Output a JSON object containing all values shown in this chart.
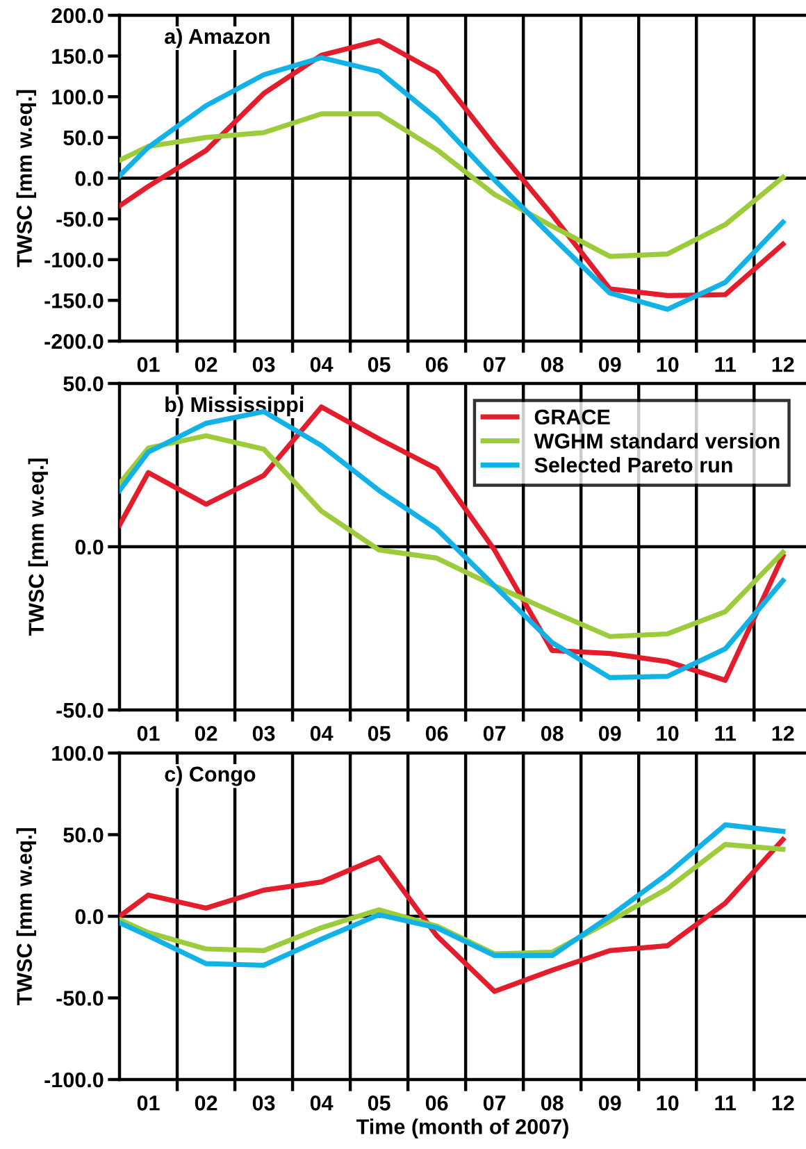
{
  "chart_data": [
    {
      "type": "line",
      "title": "a) Amazon",
      "ylabel": "TWSC [mm w.eq.]",
      "xlim": [
        0.5,
        12.4
      ],
      "ylim": [
        -200,
        200
      ],
      "xticks": [
        {
          "value": 1,
          "label": "01"
        },
        {
          "value": 1.5,
          "label": null
        },
        {
          "value": 2,
          "label": "02"
        },
        {
          "value": 2.5,
          "label": null
        },
        {
          "value": 3,
          "label": "03"
        },
        {
          "value": 3.5,
          "label": null
        },
        {
          "value": 4,
          "label": "04"
        },
        {
          "value": 4.5,
          "label": null
        },
        {
          "value": 5,
          "label": "05"
        },
        {
          "value": 5.5,
          "label": null
        },
        {
          "value": 6,
          "label": "06"
        },
        {
          "value": 6.5,
          "label": null
        },
        {
          "value": 7,
          "label": "07"
        },
        {
          "value": 7.5,
          "label": null
        },
        {
          "value": 8,
          "label": "08"
        },
        {
          "value": 8.5,
          "label": null
        },
        {
          "value": 9,
          "label": "09"
        },
        {
          "value": 9.5,
          "label": null
        },
        {
          "value": 10,
          "label": "10"
        },
        {
          "value": 10.5,
          "label": null
        },
        {
          "value": 11,
          "label": "11"
        },
        {
          "value": 11.5,
          "label": null
        },
        {
          "value": 12,
          "label": "12"
        }
      ],
      "yticks": [
        {
          "value": -200,
          "label": "-200.0"
        },
        {
          "value": -150,
          "label": "-150.0"
        },
        {
          "value": -100,
          "label": "-100.0"
        },
        {
          "value": -50,
          "label": "-50.0"
        },
        {
          "value": 0,
          "label": "0.0"
        },
        {
          "value": 50,
          "label": "50.0"
        },
        {
          "value": 100,
          "label": "100.0"
        },
        {
          "value": 150,
          "label": "150.0"
        },
        {
          "value": 200,
          "label": "200.0"
        }
      ],
      "grid": "x",
      "ref_lines": [
        {
          "axis": "y",
          "value": 0,
          "color": "#000000"
        }
      ],
      "x": [
        0.5,
        1,
        2,
        3,
        4,
        5,
        6,
        7,
        8,
        9,
        10,
        11,
        12
      ],
      "series": [
        {
          "color": "#e31d2b",
          "values": [
            -34,
            -10,
            34,
            104,
            151,
            169,
            130,
            40,
            -45,
            -136,
            -144,
            -143,
            -81
          ]
        },
        {
          "color": "#9ccb3b",
          "values": [
            22,
            39,
            50,
            56,
            79,
            79,
            35,
            -20,
            -59,
            -96,
            -93,
            -57,
            1
          ]
        },
        {
          "color": "#13b2e6",
          "values": [
            3,
            38,
            89,
            127,
            148,
            131,
            73,
            -2,
            -72,
            -141,
            -161,
            -128,
            -54
          ]
        }
      ]
    },
    {
      "type": "line",
      "title": "b) Mississippi",
      "ylabel": "TWSC [mm w.eq.]",
      "xlim": [
        0.5,
        12.4
      ],
      "ylim": [
        -50,
        50
      ],
      "legend": "top right",
      "xticks": [
        {
          "value": 1,
          "label": "01"
        },
        {
          "value": 1.5,
          "label": null
        },
        {
          "value": 2,
          "label": "02"
        },
        {
          "value": 2.5,
          "label": null
        },
        {
          "value": 3,
          "label": "03"
        },
        {
          "value": 3.5,
          "label": null
        },
        {
          "value": 4,
          "label": "04"
        },
        {
          "value": 4.5,
          "label": null
        },
        {
          "value": 5,
          "label": "05"
        },
        {
          "value": 5.5,
          "label": null
        },
        {
          "value": 6,
          "label": "06"
        },
        {
          "value": 6.5,
          "label": null
        },
        {
          "value": 7,
          "label": "07"
        },
        {
          "value": 7.5,
          "label": null
        },
        {
          "value": 8,
          "label": "08"
        },
        {
          "value": 8.5,
          "label": null
        },
        {
          "value": 9,
          "label": "09"
        },
        {
          "value": 9.5,
          "label": null
        },
        {
          "value": 10,
          "label": "10"
        },
        {
          "value": 10.5,
          "label": null
        },
        {
          "value": 11,
          "label": "11"
        },
        {
          "value": 11.5,
          "label": null
        },
        {
          "value": 12,
          "label": "12"
        }
      ],
      "yticks": [
        {
          "value": -50,
          "label": "-50.0"
        },
        {
          "value": 0,
          "label": "0.0"
        },
        {
          "value": 50,
          "label": "50.0"
        }
      ],
      "grid": "x",
      "ref_lines": [
        {
          "axis": "y",
          "value": 0,
          "color": "#000000"
        }
      ],
      "x": [
        0.5,
        1,
        2,
        3,
        4,
        5,
        6,
        7,
        8,
        9,
        10,
        11,
        12
      ],
      "series": [
        {
          "name": "GRACE",
          "color": "#e31d2b",
          "values": [
            6.6,
            22.7,
            13,
            21.8,
            42.8,
            33,
            23.9,
            -1,
            -31.8,
            -32.7,
            -35.2,
            -40.9,
            -2.8
          ]
        },
        {
          "name": "WGHM standard version",
          "color": "#9ccb3b",
          "values": [
            19.3,
            30.2,
            34,
            29.9,
            10.9,
            -1,
            -3.5,
            -12,
            -19.9,
            -27.5,
            -26.7,
            -19.9,
            -1.7
          ]
        },
        {
          "name": "Selected Pareto run",
          "color": "#13b2e6",
          "values": [
            17.2,
            29,
            37.8,
            41.4,
            31,
            17.2,
            5.4,
            -12,
            -29.4,
            -40.1,
            -39.7,
            -31.3,
            -10.4
          ]
        }
      ]
    },
    {
      "type": "line",
      "title": "c) Congo",
      "ylabel": "TWSC [mm w.eq.]",
      "xlabel": "Time (month of 2007)",
      "xlim": [
        0.5,
        12.4
      ],
      "ylim": [
        -100,
        100
      ],
      "xticks": [
        {
          "value": 1,
          "label": "01"
        },
        {
          "value": 1.5,
          "label": null
        },
        {
          "value": 2,
          "label": "02"
        },
        {
          "value": 2.5,
          "label": null
        },
        {
          "value": 3,
          "label": "03"
        },
        {
          "value": 3.5,
          "label": null
        },
        {
          "value": 4,
          "label": "04"
        },
        {
          "value": 4.5,
          "label": null
        },
        {
          "value": 5,
          "label": "05"
        },
        {
          "value": 5.5,
          "label": null
        },
        {
          "value": 6,
          "label": "06"
        },
        {
          "value": 6.5,
          "label": null
        },
        {
          "value": 7,
          "label": "07"
        },
        {
          "value": 7.5,
          "label": null
        },
        {
          "value": 8,
          "label": "08"
        },
        {
          "value": 8.5,
          "label": null
        },
        {
          "value": 9,
          "label": "09"
        },
        {
          "value": 9.5,
          "label": null
        },
        {
          "value": 10,
          "label": "10"
        },
        {
          "value": 10.5,
          "label": null
        },
        {
          "value": 11,
          "label": "11"
        },
        {
          "value": 11.5,
          "label": null
        },
        {
          "value": 12,
          "label": "12"
        }
      ],
      "yticks": [
        {
          "value": -100,
          "label": "-100.0"
        },
        {
          "value": -50,
          "label": "-50.0"
        },
        {
          "value": 0,
          "label": "0.0"
        },
        {
          "value": 50,
          "label": "50.0"
        },
        {
          "value": 100,
          "label": "100.0"
        }
      ],
      "grid": "x",
      "ref_lines": [
        {
          "axis": "y",
          "value": 0,
          "color": "#000000"
        }
      ],
      "x": [
        0.5,
        1,
        2,
        3,
        4,
        5,
        6,
        7,
        8,
        9,
        10,
        11,
        12
      ],
      "series": [
        {
          "color": "#e31d2b",
          "values": [
            0,
            13,
            5,
            16,
            21,
            36,
            -12,
            -46,
            -33,
            -21,
            -18,
            8,
            47
          ]
        },
        {
          "color": "#9ccb3b",
          "values": [
            -2,
            -10,
            -20,
            -21,
            -7,
            4,
            -6,
            -23,
            -22,
            -3,
            17,
            44,
            41
          ]
        },
        {
          "color": "#13b2e6",
          "values": [
            -4,
            -12,
            -29,
            -30,
            -14,
            1,
            -7,
            -24,
            -24,
            0,
            26,
            56,
            52
          ]
        }
      ]
    }
  ]
}
